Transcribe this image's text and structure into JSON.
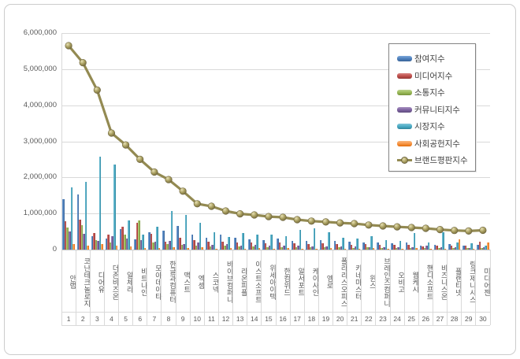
{
  "window": {
    "background": "#ffffff",
    "frame_border_color": "#cccccc"
  },
  "chart_data": {
    "type": "bar",
    "subtype": "grouped-bars-with-line-overlay",
    "title": "",
    "xlabel": "",
    "ylabel": "",
    "grid": true,
    "legend_position": "right-top-overlay",
    "categories": [
      "안랩",
      "코난테크놀로지",
      "디어유",
      "더존비즈온",
      "알체라",
      "비트나인",
      "모아데이타",
      "한글과컴퓨터",
      "맥스트",
      "엑셈",
      "스코넥",
      "바이브컴퍼니",
      "라온피플",
      "이스트소프트",
      "위세아이텍",
      "한컴위드",
      "알서포트",
      "케이사인",
      "엠로",
      "폴라리스오피스",
      "키네마스터",
      "윈스",
      "브레인즈컴퍼니",
      "오비고",
      "웹케시",
      "핸디소프트",
      "비즈니스온",
      "플랜티넷",
      "링크제니시스",
      "미디어젠"
    ],
    "ranks": [
      "1",
      "2",
      "3",
      "4",
      "5",
      "6",
      "7",
      "8",
      "9",
      "10",
      "11",
      "12",
      "13",
      "14",
      "15",
      "16",
      "17",
      "18",
      "19",
      "20",
      "21",
      "22",
      "23",
      "24",
      "25",
      "26",
      "27",
      "28",
      "29",
      "30"
    ],
    "y_axis": {
      "min": 0,
      "max": 6000000,
      "step": 1000000,
      "tick_labels": [
        "0",
        "1,000,000",
        "2,000,000",
        "3,000,000",
        "4,000,000",
        "5,000,000",
        "6,000,000"
      ]
    },
    "series": [
      {
        "name": "참여지수",
        "type": "bar",
        "color": "#4f81bd",
        "color_light": "#7da7d9",
        "color_dark": "#3a6497",
        "values": [
          1400000,
          1530000,
          380000,
          300000,
          560000,
          280000,
          480000,
          520000,
          665000,
          410000,
          335000,
          410000,
          335000,
          275000,
          260000,
          300000,
          250000,
          230000,
          260000,
          240000,
          215000,
          200000,
          195000,
          185000,
          190000,
          115000,
          130000,
          150000,
          115000,
          130000
        ]
      },
      {
        "name": "미디어지수",
        "type": "bar",
        "color": "#c0504d",
        "color_light": "#d88481",
        "color_dark": "#953735",
        "values": [
          780000,
          830000,
          450000,
          410000,
          640000,
          750000,
          445000,
          225000,
          335000,
          260000,
          225000,
          225000,
          190000,
          205000,
          175000,
          190000,
          170000,
          155000,
          175000,
          150000,
          140000,
          150000,
          130000,
          125000,
          130000,
          95000,
          100000,
          110000,
          100000,
          225000
        ]
      },
      {
        "name": "소통지수",
        "type": "bar",
        "color": "#9bbb59",
        "color_light": "#bcd28d",
        "color_dark": "#76923c",
        "values": [
          620000,
          680000,
          260000,
          190000,
          420000,
          800000,
          190000,
          155000,
          130000,
          100000,
          80000,
          100000,
          80000,
          80000,
          65000,
          75000,
          65000,
          60000,
          70000,
          55000,
          50000,
          55000,
          45000,
          45000,
          50000,
          40000,
          40000,
          40000,
          35000,
          40000
        ]
      },
      {
        "name": "커뮤니티지수",
        "type": "bar",
        "color": "#8064a2",
        "color_light": "#a791c0",
        "color_dark": "#5f4b7d",
        "values": [
          500000,
          430000,
          230000,
          380000,
          300000,
          260000,
          225000,
          250000,
          155000,
          190000,
          130000,
          155000,
          115000,
          130000,
          100000,
          115000,
          110000,
          95000,
          90000,
          85000,
          80000,
          70000,
          70000,
          65000,
          70000,
          100000,
          60000,
          55000,
          50000,
          55000
        ]
      },
      {
        "name": "시장지수",
        "type": "bar",
        "color": "#4bacc6",
        "color_light": "#81c4d6",
        "color_dark": "#31849b",
        "values": [
          1730000,
          1880000,
          2580000,
          2360000,
          800000,
          420000,
          630000,
          1080000,
          955000,
          735000,
          480000,
          350000,
          465000,
          410000,
          425000,
          370000,
          540000,
          600000,
          480000,
          330000,
          300000,
          370000,
          260000,
          240000,
          465000,
          205000,
          480000,
          190000,
          170000,
          120000
        ]
      },
      {
        "name": "사회공헌지수",
        "type": "bar",
        "color": "#f79646",
        "color_light": "#fab77e",
        "color_dark": "#e36c09",
        "values": [
          150000,
          120000,
          150000,
          100000,
          80000,
          50000,
          45000,
          60000,
          45000,
          60000,
          30000,
          45000,
          30000,
          45000,
          30000,
          35000,
          30000,
          30000,
          35000,
          30000,
          25000,
          40000,
          25000,
          25000,
          35000,
          25000,
          30000,
          275000,
          25000,
          190000
        ]
      },
      {
        "name": "브랜드평판지수",
        "type": "line",
        "color": "#938a52",
        "marker_fill": "#a79d5e",
        "marker_edge": "#6e6540",
        "values": [
          5650000,
          5180000,
          4420000,
          3230000,
          2900000,
          2500000,
          2150000,
          1940000,
          1620000,
          1270000,
          1200000,
          1070000,
          990000,
          960000,
          915000,
          895000,
          830000,
          790000,
          765000,
          740000,
          720000,
          680000,
          655000,
          630000,
          610000,
          590000,
          555000,
          530000,
          515000,
          535000
        ]
      }
    ]
  }
}
